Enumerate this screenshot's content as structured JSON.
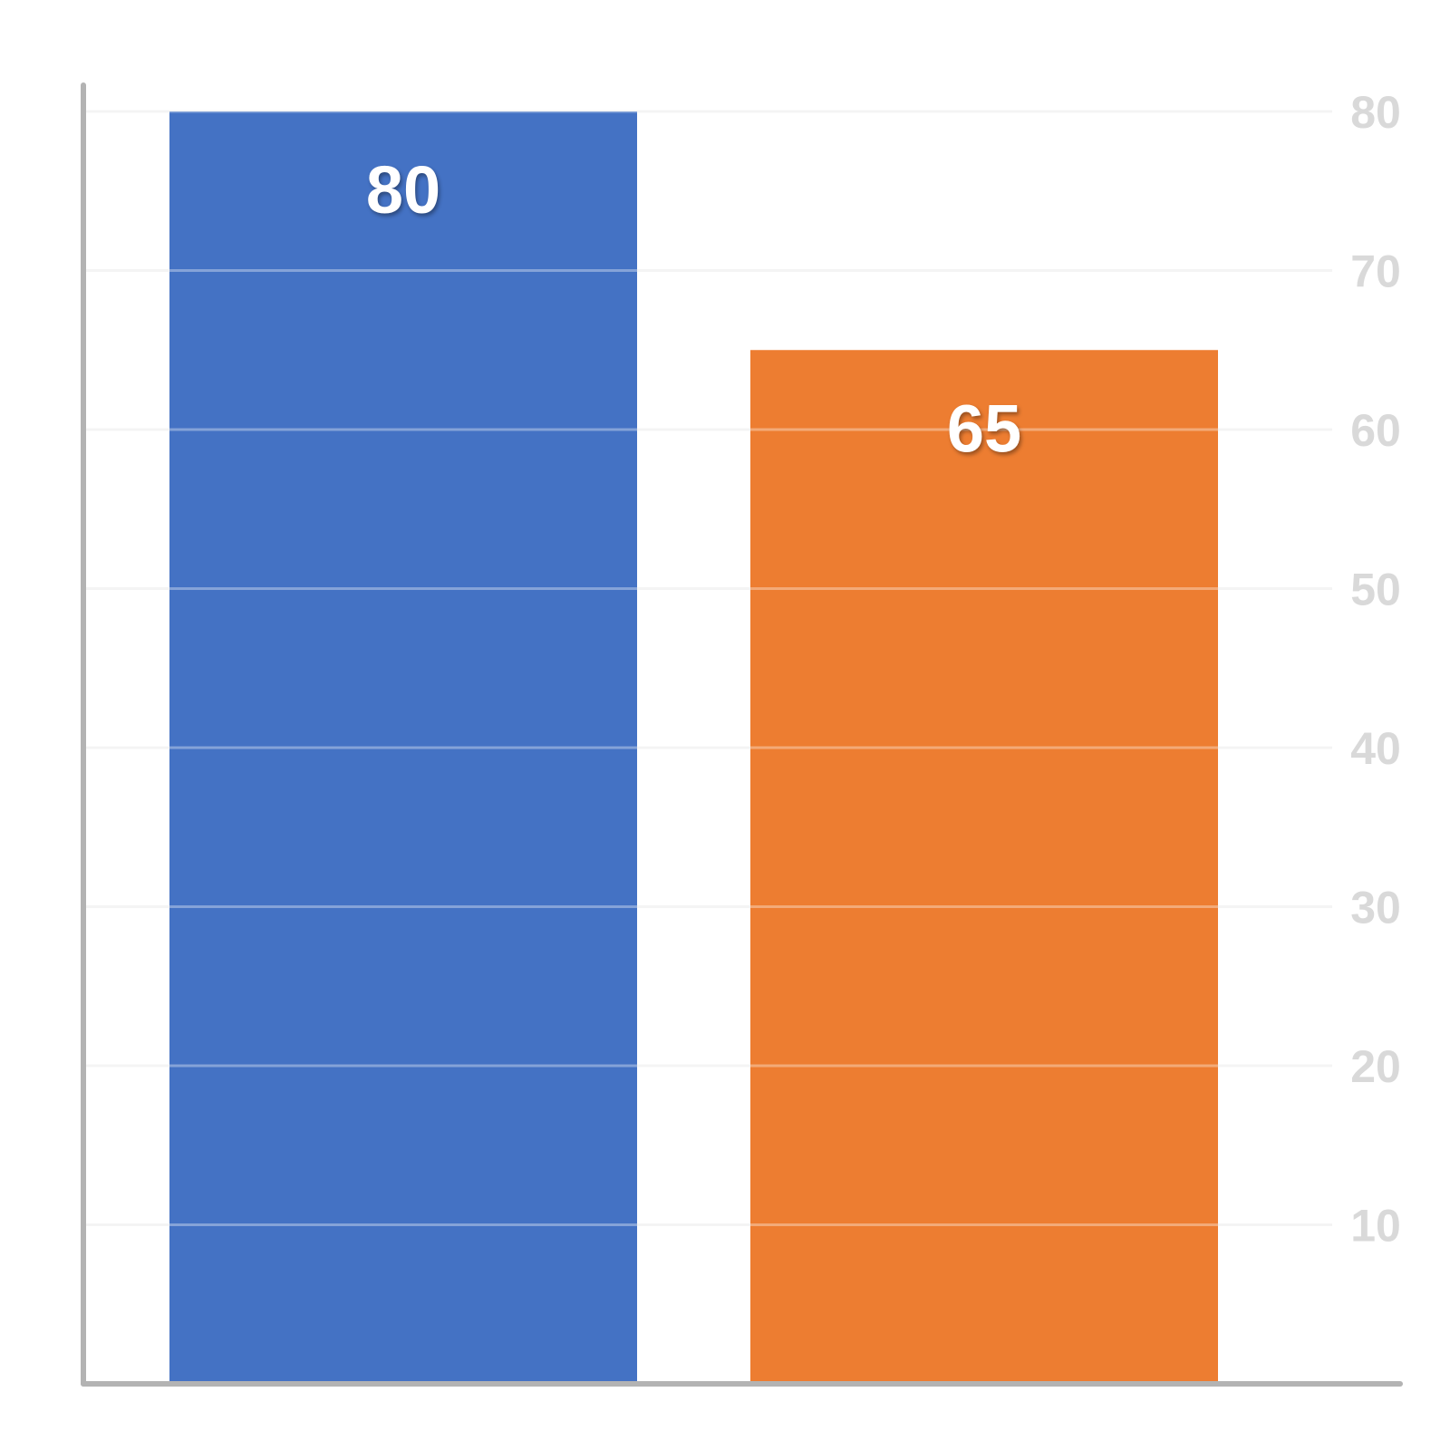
{
  "chart_data": {
    "type": "bar",
    "title": "",
    "xlabel": "",
    "ylabel": "",
    "categories": [
      "",
      ""
    ],
    "values": [
      80,
      65
    ],
    "data_labels": [
      "80",
      "65"
    ],
    "colors": [
      "#4472c4",
      "#ed7d31"
    ],
    "ylim": [
      0,
      80
    ],
    "y_ticks": [
      10,
      20,
      30,
      40,
      50,
      60,
      70,
      80
    ],
    "y_tick_labels": [
      "10",
      "20",
      "30",
      "40",
      "50",
      "60",
      "70",
      "80"
    ],
    "y_axis_side": "right",
    "grid": true,
    "legend": "none"
  },
  "style": {
    "grid_color": "#eeeeee",
    "axis_color": "#b3b3b3",
    "tick_label_color": "#d9d9d9",
    "data_label_color": "#ffffff"
  }
}
